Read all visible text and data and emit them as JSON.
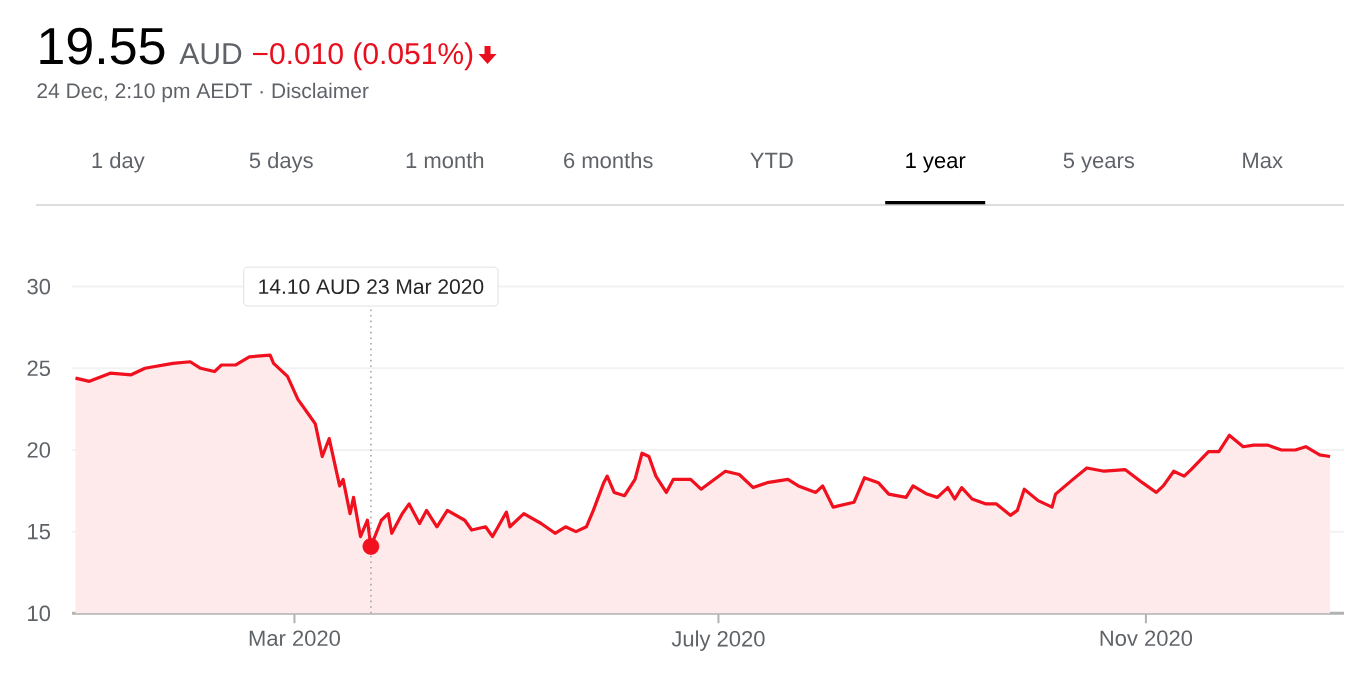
{
  "chart_data": {
    "type": "area",
    "title": "19.55",
    "subtitle": "24 Dec, 2:10 pm AEDT · Disclaimer",
    "annotations": [
      "AUD",
      "−0.010 (0.051%)",
      "1 day",
      "5 days",
      "1 month",
      "6 months",
      "YTD",
      "1 year",
      "5 years",
      "Max"
    ],
    "ref_lines": [
      {
        "axis": "x",
        "value": "2020-03-23",
        "label": "14.10 AUD  23 Mar 2020",
        "color": "#a6a6a6",
        "line_style": "dotted"
      }
    ],
    "x": [
      "2019-12-29",
      "2020-01-02",
      "2020-01-08",
      "2020-01-14",
      "2020-01-18",
      "2020-01-26",
      "2020-01-31",
      "2020-02-03",
      "2020-02-07",
      "2020-02-09",
      "2020-02-13",
      "2020-02-17",
      "2020-02-23",
      "2020-02-24",
      "2020-02-28",
      "2020-03-02",
      "2020-03-05",
      "2020-03-07",
      "2020-03-09",
      "2020-03-11",
      "2020-03-14",
      "2020-03-15",
      "2020-03-17",
      "2020-03-18",
      "2020-03-20",
      "2020-03-22",
      "2020-03-23",
      "2020-03-26",
      "2020-03-28",
      "2020-03-29",
      "2020-04-01",
      "2020-04-03",
      "2020-04-06",
      "2020-04-08",
      "2020-04-11",
      "2020-04-14",
      "2020-04-19",
      "2020-04-21",
      "2020-04-25",
      "2020-04-27",
      "2020-05-01",
      "2020-05-02",
      "2020-05-06",
      "2020-05-11",
      "2020-05-15",
      "2020-05-18",
      "2020-05-21",
      "2020-05-24",
      "2020-05-26",
      "2020-05-29",
      "2020-05-30",
      "2020-06-01",
      "2020-06-04",
      "2020-06-07",
      "2020-06-09",
      "2020-06-11",
      "2020-06-13",
      "2020-06-16",
      "2020-06-18",
      "2020-06-23",
      "2020-06-26",
      "2020-07-03",
      "2020-07-07",
      "2020-07-11",
      "2020-07-15",
      "2020-07-21",
      "2020-07-24",
      "2020-07-29",
      "2020-07-31",
      "2020-08-03",
      "2020-08-09",
      "2020-08-12",
      "2020-08-16",
      "2020-08-19",
      "2020-08-24",
      "2020-08-26",
      "2020-08-30",
      "2020-09-02",
      "2020-09-05",
      "2020-09-07",
      "2020-09-09",
      "2020-09-12",
      "2020-09-16",
      "2020-09-19",
      "2020-09-23",
      "2020-09-25",
      "2020-09-27",
      "2020-10-01",
      "2020-10-05",
      "2020-10-06",
      "2020-10-11",
      "2020-10-15",
      "2020-10-20",
      "2020-10-26",
      "2020-10-31",
      "2020-11-04",
      "2020-11-06",
      "2020-11-09",
      "2020-11-12",
      "2020-11-14",
      "2020-11-19",
      "2020-11-22",
      "2020-11-25",
      "2020-11-29",
      "2020-12-02",
      "2020-12-06",
      "2020-12-10",
      "2020-12-14",
      "2020-12-17",
      "2020-12-21",
      "2020-12-24"
    ],
    "series": [
      {
        "color": "#f0101e",
        "values": [
          24.4,
          24.2,
          24.7,
          24.6,
          25.0,
          25.3,
          25.4,
          25.0,
          24.8,
          25.2,
          25.2,
          25.7,
          25.8,
          25.3,
          24.5,
          23.1,
          22.2,
          21.6,
          19.6,
          20.7,
          17.8,
          18.2,
          16.1,
          17.1,
          14.7,
          15.7,
          14.1,
          15.7,
          16.1,
          14.9,
          16.1,
          16.7,
          15.5,
          16.3,
          15.3,
          16.3,
          15.7,
          15.1,
          15.3,
          14.7,
          16.2,
          15.3,
          16.1,
          15.5,
          14.9,
          15.3,
          15.0,
          15.3,
          16.3,
          18.0,
          18.4,
          17.4,
          17.2,
          18.2,
          19.8,
          19.6,
          18.4,
          17.4,
          18.2,
          18.2,
          17.6,
          18.7,
          18.5,
          17.7,
          18.0,
          18.2,
          17.8,
          17.4,
          17.8,
          16.5,
          16.8,
          18.3,
          18.0,
          17.3,
          17.1,
          17.8,
          17.3,
          17.1,
          17.7,
          17.0,
          17.7,
          17.0,
          16.7,
          16.7,
          16.0,
          16.3,
          17.6,
          16.9,
          16.5,
          17.3,
          18.2,
          18.9,
          18.7,
          18.8,
          18.0,
          17.4,
          17.8,
          18.7,
          18.4,
          18.8,
          19.9,
          19.9,
          20.9,
          20.2,
          20.3,
          20.3,
          20.0,
          20.0,
          20.2,
          19.7,
          19.6
        ]
      },
      {
        "type": "scatter",
        "color": "#f0101e",
        "marker": "circle",
        "x": [
          "2020-03-23"
        ],
        "values": [
          14.1
        ]
      }
    ],
    "xlim": [
      "2019-12-28",
      "2020-12-28"
    ],
    "xticks": [
      {
        "value": "2020-03-01",
        "label": "Mar 2020"
      },
      {
        "value": "2020-07-01",
        "label": "July 2020"
      },
      {
        "value": "2020-11-01",
        "label": "Nov 2020"
      }
    ],
    "ylim": [
      10,
      30
    ],
    "yticks": [
      10,
      15,
      20,
      25,
      30
    ],
    "grid": "y"
  }
}
